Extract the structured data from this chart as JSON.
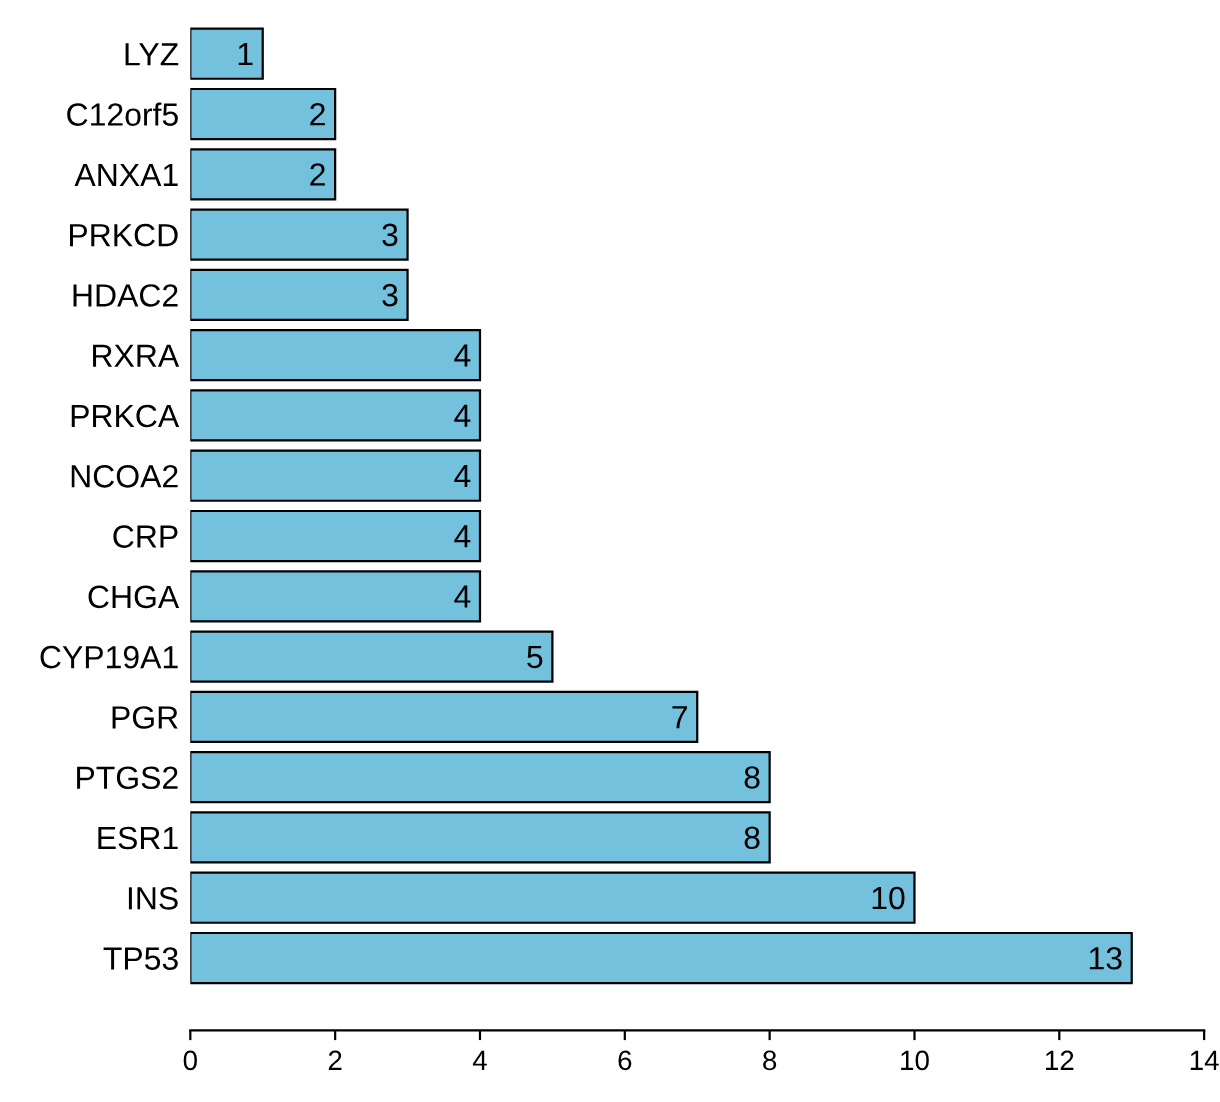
{
  "chart_data": {
    "type": "bar",
    "orientation": "horizontal",
    "categories": [
      "LYZ",
      "C12orf5",
      "ANXA1",
      "PRKCD",
      "HDAC2",
      "RXRA",
      "PRKCA",
      "NCOA2",
      "CRP",
      "CHGA",
      "CYP19A1",
      "PGR",
      "PTGS2",
      "ESR1",
      "INS",
      "TP53"
    ],
    "values": [
      1,
      2,
      2,
      3,
      3,
      4,
      4,
      4,
      4,
      4,
      5,
      7,
      8,
      8,
      10,
      13
    ],
    "color": "#74c1de",
    "xlim": [
      0,
      14
    ],
    "xticks": [
      0,
      2,
      4,
      6,
      8,
      10,
      12,
      14
    ],
    "data_labels": true,
    "grid": false,
    "legend": false
  }
}
